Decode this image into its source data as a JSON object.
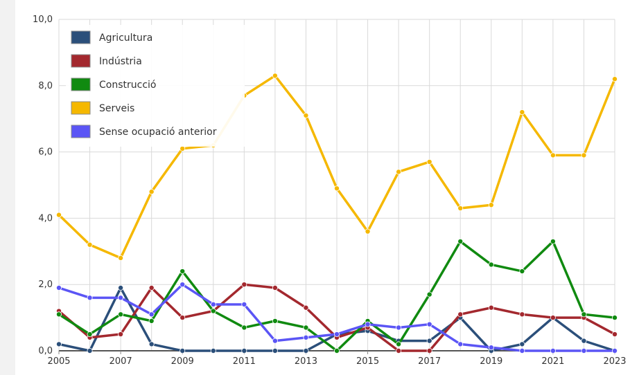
{
  "chart_data": {
    "type": "line",
    "x": [
      2005,
      2006,
      2007,
      2008,
      2009,
      2010,
      2011,
      2012,
      2013,
      2014,
      2015,
      2016,
      2017,
      2018,
      2019,
      2020,
      2021,
      2022,
      2023
    ],
    "x_tick_labels": [
      "2005",
      "2007",
      "2009",
      "2011",
      "2013",
      "2015",
      "2017",
      "2019",
      "2021",
      "2023"
    ],
    "y_tick_labels": [
      "0,0",
      "2,0",
      "4,0",
      "6,0",
      "8,0",
      "10,0"
    ],
    "ylim": [
      0,
      10
    ],
    "grid": true,
    "legend_position": "top-left",
    "series": [
      {
        "name": "Agricultura",
        "color": "#2b4f7a",
        "values": [
          0.2,
          0.0,
          1.9,
          0.2,
          0.0,
          0.0,
          0.0,
          0.0,
          0.0,
          0.5,
          0.6,
          0.3,
          0.3,
          1.0,
          0.0,
          0.2,
          1.0,
          0.3,
          0.0
        ]
      },
      {
        "name": "Indústria",
        "color": "#a3282e",
        "values": [
          1.2,
          0.4,
          0.5,
          1.9,
          1.0,
          1.2,
          2.0,
          1.9,
          1.3,
          0.4,
          0.7,
          0.0,
          0.0,
          1.1,
          1.3,
          1.1,
          1.0,
          1.0,
          0.5
        ]
      },
      {
        "name": "Construcció",
        "color": "#108a10",
        "values": [
          1.1,
          0.5,
          1.1,
          0.9,
          2.4,
          1.2,
          0.7,
          0.9,
          0.7,
          0.0,
          0.9,
          0.2,
          1.7,
          3.3,
          2.6,
          2.4,
          3.3,
          1.1,
          1.0
        ]
      },
      {
        "name": "Serveis",
        "color": "#f5b800",
        "values": [
          4.1,
          3.2,
          2.8,
          4.8,
          6.1,
          6.2,
          7.7,
          8.3,
          7.1,
          4.9,
          3.6,
          5.4,
          5.7,
          4.3,
          4.4,
          7.2,
          5.9,
          5.9,
          8.2
        ]
      },
      {
        "name": "Sense ocupació anterior",
        "color": "#5b55f5",
        "values": [
          1.9,
          1.6,
          1.6,
          1.1,
          2.0,
          1.4,
          1.4,
          0.3,
          0.4,
          0.5,
          0.8,
          0.7,
          0.8,
          0.2,
          0.1,
          0.0,
          0.0,
          0.0,
          0.0
        ]
      }
    ]
  }
}
